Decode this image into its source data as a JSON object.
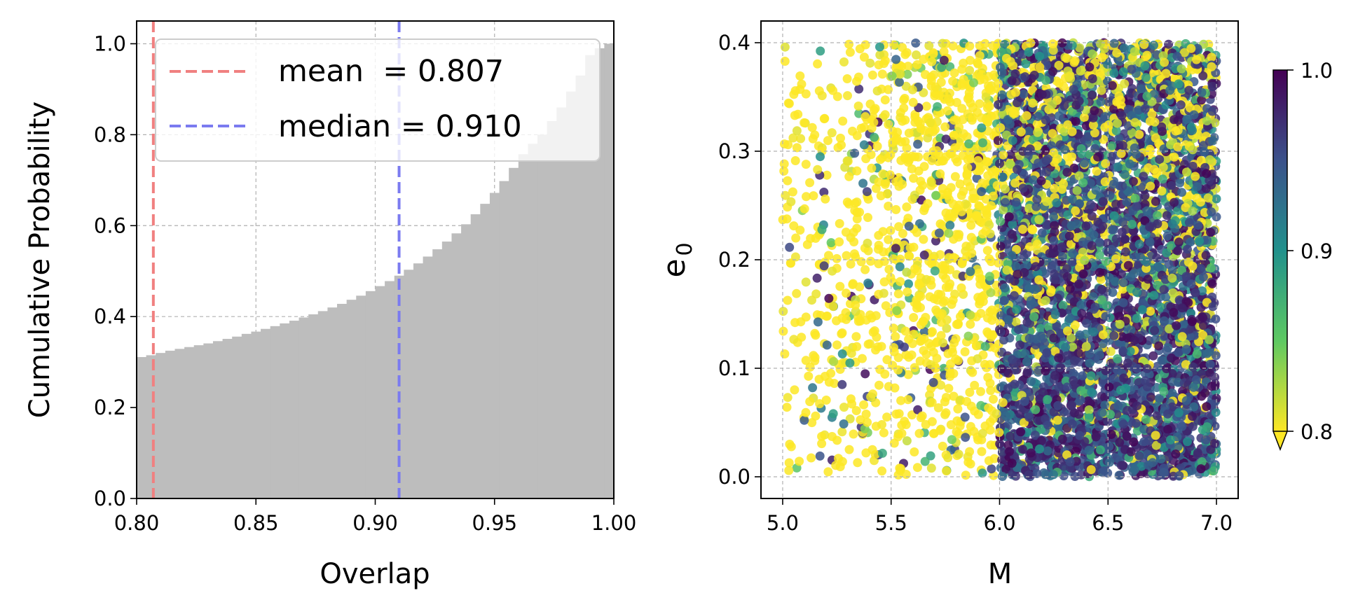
{
  "chart_data": [
    {
      "type": "histogram",
      "subtype": "cumulative-step",
      "xlabel": "Overlap",
      "ylabel": "Cumulative Probability",
      "xlim": [
        0.8,
        1.0
      ],
      "ylim": [
        0.0,
        1.05
      ],
      "xticks": [
        "0.80",
        "0.85",
        "0.90",
        "0.95",
        "1.00"
      ],
      "yticks": [
        "0.0",
        "0.2",
        "0.4",
        "0.6",
        "0.8",
        "1.0"
      ],
      "grid": true,
      "bar_color": "#bdbdbd",
      "bin_width": 0.004,
      "bin_starts": [
        0.8,
        0.804,
        0.808,
        0.812,
        0.816,
        0.82,
        0.824,
        0.828,
        0.832,
        0.836,
        0.84,
        0.844,
        0.848,
        0.852,
        0.856,
        0.86,
        0.864,
        0.868,
        0.872,
        0.876,
        0.88,
        0.884,
        0.888,
        0.892,
        0.896,
        0.9,
        0.904,
        0.908,
        0.912,
        0.916,
        0.92,
        0.924,
        0.928,
        0.932,
        0.936,
        0.94,
        0.944,
        0.948,
        0.952,
        0.956,
        0.96,
        0.964,
        0.968,
        0.972,
        0.976,
        0.98,
        0.984,
        0.988,
        0.992,
        0.996
      ],
      "cumulative": [
        0.311,
        0.315,
        0.32,
        0.325,
        0.329,
        0.333,
        0.337,
        0.341,
        0.346,
        0.351,
        0.356,
        0.362,
        0.367,
        0.373,
        0.379,
        0.385,
        0.391,
        0.398,
        0.405,
        0.412,
        0.42,
        0.428,
        0.437,
        0.446,
        0.456,
        0.467,
        0.478,
        0.49,
        0.503,
        0.517,
        0.532,
        0.548,
        0.565,
        0.583,
        0.603,
        0.625,
        0.648,
        0.672,
        0.698,
        0.727,
        0.757,
        0.78,
        0.8,
        0.83,
        0.86,
        0.895,
        0.93,
        0.975,
        0.99,
        1.0
      ],
      "vlines": [
        {
          "name": "mean",
          "value": 0.807,
          "label": "mean  = 0.807",
          "color": "#f08080",
          "style": "dashed"
        },
        {
          "name": "median",
          "value": 0.91,
          "label": "median = 0.910",
          "color": "#7b7bf0",
          "style": "dashed"
        }
      ],
      "legend": "top-left"
    },
    {
      "type": "scatter",
      "xlabel": "M",
      "ylabel": "e",
      "ylabel_subscript": "0",
      "xlim": [
        4.9,
        7.1
      ],
      "ylim": [
        -0.02,
        0.42
      ],
      "xticks": [
        "5.0",
        "5.5",
        "6.0",
        "6.5",
        "7.0"
      ],
      "yticks": [
        "0.0",
        "0.1",
        "0.2",
        "0.3",
        "0.4"
      ],
      "grid": true,
      "x_range": [
        5.0,
        7.0
      ],
      "y_range": [
        0.0,
        0.4
      ],
      "color_variable": "overlap",
      "colormap": "viridis (reversed)",
      "colormap_stops": [
        "#fde725",
        "#5ec962",
        "#21918c",
        "#3b528b",
        "#440154"
      ],
      "point_count": 6000,
      "random_seed": 7,
      "colorbar": {
        "min": 0.8,
        "max": 1.0,
        "ticks": [
          "0.8",
          "0.9",
          "1.0"
        ],
        "extend": "min"
      }
    }
  ]
}
